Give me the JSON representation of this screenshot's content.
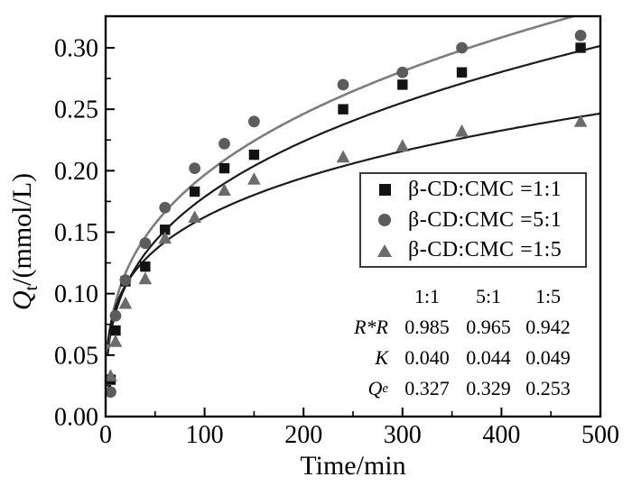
{
  "figure": {
    "background": "#ffffff"
  },
  "chart_data": {
    "type": "scatter",
    "title": "",
    "xlabel": "Time/min",
    "ylabel": {
      "main": "Q",
      "sub": "t",
      "rest": "/(mmol/L)"
    },
    "xlim": [
      0,
      500
    ],
    "ylim": [
      0,
      0.3255
    ],
    "x_ticks": [
      0,
      100,
      200,
      300,
      400,
      500
    ],
    "x_minor_ticks": [
      50,
      150,
      250,
      350,
      450
    ],
    "y_ticks": [
      "0.00",
      "0.05",
      "0.10",
      "0.15",
      "0.20",
      "0.25",
      "0.30"
    ],
    "y_tick_step": 0.05,
    "y_minor_step": 0.025,
    "grid": false,
    "legend_position": "inside-right",
    "x": [
      5,
      10,
      20,
      40,
      60,
      90,
      120,
      150,
      240,
      300,
      360,
      480
    ],
    "series": [
      {
        "name": "beta-CD-CMC-1-1",
        "label": "β-CD:CMC =1:1",
        "marker": "square",
        "marker_color": "#121212",
        "line_color": "#1a1a1a",
        "values": [
          0.03,
          0.07,
          0.11,
          0.122,
          0.152,
          0.183,
          0.202,
          0.213,
          0.25,
          0.27,
          0.28,
          0.3
        ],
        "fit": {
          "model": "power Q=K*t^n",
          "K": 0.04,
          "n": 0.325
        }
      },
      {
        "name": "beta-CD-CMC-5-1",
        "label": "β-CD:CMC =5:1",
        "marker": "circle",
        "marker_color": "#5c5c5c",
        "line_color": "#7d7d7d",
        "values": [
          0.02,
          0.082,
          0.111,
          0.141,
          0.17,
          0.202,
          0.222,
          0.24,
          0.27,
          0.28,
          0.3,
          0.31
        ],
        "fit": {
          "model": "power Q=K*t^n",
          "K": 0.044,
          "n": 0.325
        }
      },
      {
        "name": "beta-CD-CMC-1-5",
        "label": "β-CD:CMC =1:5",
        "marker": "triangle",
        "marker_color": "#6b6b6b",
        "line_color": "#1a1a1a",
        "values": [
          0.033,
          0.061,
          0.092,
          0.112,
          0.145,
          0.162,
          0.184,
          0.193,
          0.211,
          0.22,
          0.232,
          0.24
        ],
        "fit": {
          "model": "power Q=K*t^n",
          "K": 0.049,
          "n": 0.26
        }
      }
    ],
    "table": {
      "columns": [
        "1:1",
        "5:1",
        "1:5"
      ],
      "rows": [
        {
          "label": "R*R",
          "label_sub": "",
          "values": [
            "0.985",
            "0.965",
            "0.942"
          ]
        },
        {
          "label": "K",
          "label_sub": "",
          "values": [
            "0.040",
            "0.044",
            "0.049"
          ]
        },
        {
          "label": "Q",
          "label_sub": "e",
          "values": [
            "0.327",
            "0.329",
            "0.253"
          ]
        }
      ]
    }
  }
}
